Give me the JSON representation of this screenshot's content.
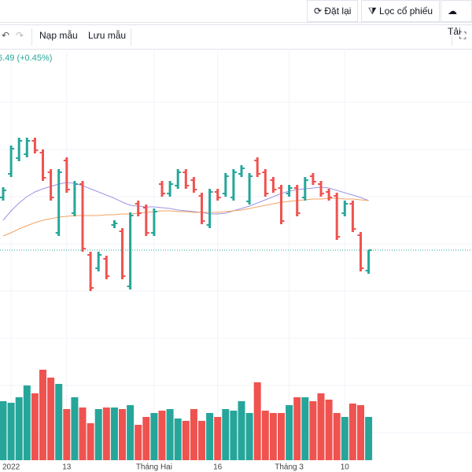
{
  "toolbar": {
    "reset": "Đặt lại",
    "screener": "Lọc cổ phiếu",
    "download": "Tải"
  },
  "chart_toolbar": {
    "load": "Nạp mẫu",
    "save": "Lưu mẫu"
  },
  "chart_data": {
    "type": "candlestick",
    "legend_text": "6.49 (+0.45%)",
    "categories": [
      null,
      "2022",
      null,
      null,
      null,
      null,
      null,
      null,
      "13",
      null,
      null,
      null,
      null,
      null,
      null,
      null,
      null,
      null,
      null,
      "Tháng Hai",
      null,
      null,
      null,
      null,
      null,
      null,
      null,
      "16",
      null,
      null,
      null,
      null,
      null,
      null,
      null,
      null,
      "Tháng 3",
      null,
      null,
      null,
      null,
      null,
      null,
      "10",
      null,
      null,
      null
    ],
    "open": [
      219,
      249,
      269,
      274,
      291,
      276,
      251,
      174,
      266,
      199,
      236,
      146,
      129,
      141,
      184,
      176,
      106,
      211,
      206,
      174,
      236,
      224,
      234,
      251,
      241,
      221,
      184,
      226,
      224,
      219,
      249,
      214,
      266,
      251,
      241,
      231,
      224,
      231,
      219,
      246,
      236,
      226,
      221,
      199,
      211,
      171,
      126
    ],
    "high": [
      232,
      285,
      295,
      295,
      295,
      280,
      255,
      255,
      270,
      240,
      240,
      150,
      150,
      145,
      190,
      180,
      200,
      215,
      210,
      205,
      240,
      240,
      255,
      255,
      245,
      225,
      230,
      230,
      250,
      255,
      260,
      250,
      270,
      255,
      245,
      235,
      235,
      235,
      245,
      250,
      240,
      230,
      225,
      215,
      215,
      175,
      152
    ],
    "low": [
      215,
      245,
      265,
      270,
      275,
      240,
      215,
      170,
      225,
      195,
      150,
      100,
      125,
      115,
      180,
      115,
      102,
      195,
      170,
      170,
      220,
      220,
      230,
      230,
      225,
      185,
      180,
      215,
      220,
      215,
      245,
      210,
      245,
      220,
      225,
      185,
      220,
      195,
      215,
      235,
      220,
      215,
      165,
      195,
      175,
      125,
      122
    ],
    "close": [
      228,
      281,
      291,
      291,
      279,
      244,
      219,
      251,
      229,
      236,
      154,
      104,
      146,
      119,
      186,
      119,
      196,
      199,
      174,
      201,
      224,
      236,
      251,
      234,
      229,
      189,
      226,
      219,
      246,
      251,
      256,
      246,
      249,
      224,
      229,
      189,
      231,
      199,
      241,
      239,
      224,
      219,
      169,
      211,
      179,
      129,
      152
    ],
    "up_color": "#26a69a",
    "down_color": "#ef5350",
    "ylim": [
      0,
      400
    ],
    "volume": [
      75,
      73,
      80,
      95,
      85,
      115,
      105,
      97,
      65,
      80,
      67,
      47,
      65,
      67,
      67,
      65,
      70,
      45,
      55,
      60,
      63,
      65,
      53,
      50,
      65,
      50,
      60,
      55,
      65,
      63,
      75,
      60,
      99,
      63,
      60,
      60,
      70,
      80,
      80,
      75,
      85,
      77,
      60,
      55,
      72,
      70,
      55
    ],
    "volume_ylim": [
      0,
      130
    ],
    "series": [
      {
        "color": "#9c95e6",
        "values": [
          190,
          202,
          212,
          220,
          226,
          230,
          233,
          236,
          238,
          237,
          234,
          230,
          226,
          222,
          218,
          213,
          209,
          208,
          207,
          207,
          206,
          205,
          203,
          202,
          201,
          200,
          198,
          198,
          199,
          202,
          205,
          208,
          212,
          216,
          220,
          224,
          227,
          229,
          230,
          231,
          232,
          231,
          228,
          225,
          222,
          219,
          215
        ]
      },
      {
        "color": "#f4a261",
        "values": [
          170,
          174,
          179,
          183,
          187,
          190,
          192,
          194,
          195,
          196,
          196,
          196,
          196,
          197,
          197,
          198,
          198,
          199,
          200,
          201,
          202,
          202,
          201,
          201,
          200,
          200,
          200,
          200,
          201,
          202,
          203,
          205,
          207,
          209,
          211,
          213,
          214,
          215,
          216,
          217,
          217,
          218,
          218,
          217,
          217,
          216,
          215
        ]
      }
    ],
    "price_line": true
  }
}
